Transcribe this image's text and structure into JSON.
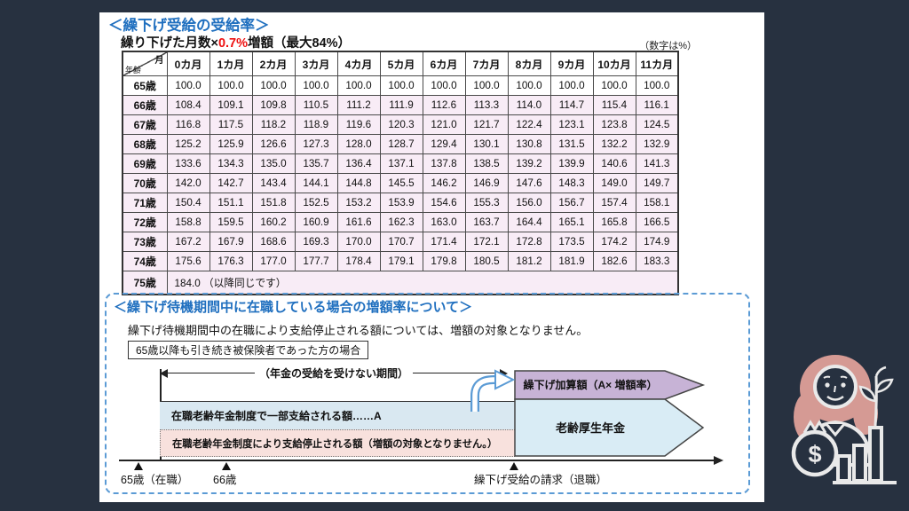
{
  "colors": {
    "background_navy": "#273140",
    "panel_white": "#ffffff",
    "accent_blue": "#1f6fbf",
    "accent_red": "#ee1111",
    "table_row_pink": "#f8ecf6",
    "dashed_border_blue": "#5b9bd5",
    "band_blue": "#d9e8f1",
    "band_pink": "#f8e1dd",
    "arrow_purple": "#c7b3d6",
    "arrow_lightblue": "#d9ecf5",
    "illustration_hair_pink": "#d59a94"
  },
  "rate_table": {
    "title": "＜繰下げ受給の受給率＞",
    "formula_prefix": "繰り下げた月数×",
    "formula_rate": "0.7%",
    "formula_suffix": "増額（最大84%）",
    "unit_note": "（数字は%）",
    "corner": {
      "top": "月",
      "bottom": "年齢"
    },
    "month_headers": [
      "0カ月",
      "1カ月",
      "2カ月",
      "3カ月",
      "4カ月",
      "5カ月",
      "6カ月",
      "7カ月",
      "8カ月",
      "9カ月",
      "10カ月",
      "11カ月"
    ],
    "rows": [
      {
        "age": "65歳",
        "highlight": false,
        "values": [
          "100.0",
          "100.0",
          "100.0",
          "100.0",
          "100.0",
          "100.0",
          "100.0",
          "100.0",
          "100.0",
          "100.0",
          "100.0",
          "100.0"
        ]
      },
      {
        "age": "66歳",
        "highlight": true,
        "values": [
          "108.4",
          "109.1",
          "109.8",
          "110.5",
          "111.2",
          "111.9",
          "112.6",
          "113.3",
          "114.0",
          "114.7",
          "115.4",
          "116.1"
        ]
      },
      {
        "age": "67歳",
        "highlight": true,
        "values": [
          "116.8",
          "117.5",
          "118.2",
          "118.9",
          "119.6",
          "120.3",
          "121.0",
          "121.7",
          "122.4",
          "123.1",
          "123.8",
          "124.5"
        ]
      },
      {
        "age": "68歳",
        "highlight": true,
        "values": [
          "125.2",
          "125.9",
          "126.6",
          "127.3",
          "128.0",
          "128.7",
          "129.4",
          "130.1",
          "130.8",
          "131.5",
          "132.2",
          "132.9"
        ]
      },
      {
        "age": "69歳",
        "highlight": true,
        "values": [
          "133.6",
          "134.3",
          "135.0",
          "135.7",
          "136.4",
          "137.1",
          "137.8",
          "138.5",
          "139.2",
          "139.9",
          "140.6",
          "141.3"
        ]
      },
      {
        "age": "70歳",
        "highlight": true,
        "values": [
          "142.0",
          "142.7",
          "143.4",
          "144.1",
          "144.8",
          "145.5",
          "146.2",
          "146.9",
          "147.6",
          "148.3",
          "149.0",
          "149.7"
        ]
      },
      {
        "age": "71歳",
        "highlight": true,
        "values": [
          "150.4",
          "151.1",
          "151.8",
          "152.5",
          "153.2",
          "153.9",
          "154.6",
          "155.3",
          "156.0",
          "156.7",
          "157.4",
          "158.1"
        ]
      },
      {
        "age": "72歳",
        "highlight": true,
        "values": [
          "158.8",
          "159.5",
          "160.2",
          "160.9",
          "161.6",
          "162.3",
          "163.0",
          "163.7",
          "164.4",
          "165.1",
          "165.8",
          "166.5"
        ]
      },
      {
        "age": "73歳",
        "highlight": true,
        "values": [
          "167.2",
          "167.9",
          "168.6",
          "169.3",
          "170.0",
          "170.7",
          "171.4",
          "172.1",
          "172.8",
          "173.5",
          "174.2",
          "174.9"
        ]
      },
      {
        "age": "74歳",
        "highlight": true,
        "values": [
          "175.6",
          "176.3",
          "177.0",
          "177.7",
          "178.4",
          "179.1",
          "179.8",
          "180.5",
          "181.2",
          "181.9",
          "182.6",
          "183.3"
        ]
      },
      {
        "age": "75歳",
        "highlight": true,
        "tall": true,
        "values": [
          "184.0 （以降同じです）"
        ]
      }
    ]
  },
  "employment_box": {
    "title": "＜繰下げ待機期間中に在職している場合の増額率について＞",
    "description": "繰下げ待機期間中の在職により支給停止される額については、増額の対象となりません。",
    "case_label": "65歳以降も引き続き被保険者であった方の場合",
    "diagram": {
      "no_pension_period": "（年金の受給を受けない期間）",
      "partial_payment": "在職老齢年金制度で一部支給される額……A",
      "suspended_payment": "在職老齢年金制度により支給停止される額（増額の対象となりません。）",
      "addition_arrow": "繰下げ加算額（A× 増額率）",
      "pension_arrow": "老齢厚生年金",
      "timeline": [
        {
          "label": "65歳（在職）"
        },
        {
          "label": "66歳"
        },
        {
          "label": "繰下げ受給の請求（退職）"
        }
      ]
    }
  },
  "illustration": {
    "dollar_sign": "$"
  }
}
